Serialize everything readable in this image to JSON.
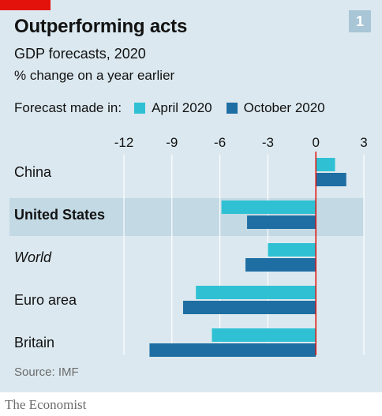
{
  "header": {
    "badge": "1",
    "title": "Outperforming acts",
    "subtitle": "GDP forecasts, 2020",
    "unit": "% change on a year earlier"
  },
  "legend": {
    "title": "Forecast made in:",
    "items": [
      {
        "label": "April 2020",
        "color": "#2fc1d3"
      },
      {
        "label": "October 2020",
        "color": "#1f6ea3"
      }
    ]
  },
  "footer": {
    "source": "Source: IMF",
    "brand": "The Economist"
  },
  "colors": {
    "accent_red": "#e3120b",
    "highlight_band": "#c3d9e4",
    "panel_bg": "#dbe8ef"
  },
  "chart_data": {
    "type": "bar",
    "orientation": "horizontal",
    "categories": [
      "China",
      "United States",
      "World",
      "Euro area",
      "Britain"
    ],
    "category_styles": [
      "normal",
      "bold-highlighted",
      "italic",
      "normal",
      "normal"
    ],
    "series": [
      {
        "name": "April 2020",
        "values": [
          1.2,
          -5.9,
          -3.0,
          -7.5,
          -6.5
        ]
      },
      {
        "name": "October 2020",
        "values": [
          1.9,
          -4.3,
          -4.4,
          -8.3,
          -10.4
        ]
      }
    ],
    "xlim": [
      -12,
      3
    ],
    "xticks": [
      -12,
      -9,
      -6,
      -3,
      0,
      3
    ],
    "xtick_labels": [
      "-12",
      "-9",
      "-6",
      "-3",
      "0",
      "3"
    ],
    "grid": "vertical",
    "legend_position": "top-left"
  }
}
